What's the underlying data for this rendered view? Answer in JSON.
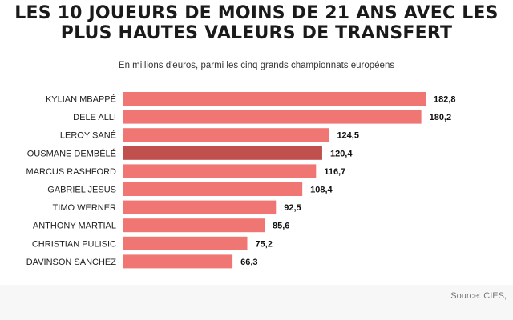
{
  "title": {
    "line1": "LES 10 JOUEURS DE MOINS DE 21 ANS AVEC LES",
    "line2": "PLUS HAUTES VALEURS DE TRANSFERT"
  },
  "subtitle": "En millions d'euros, parmi les cinq grands championnats européens",
  "source": "Source: CIES,",
  "colors": {
    "bar": "#ef7672",
    "highlight": "#c0504d",
    "label": "#222222",
    "value": "#111111"
  },
  "chart_data": {
    "type": "bar",
    "orientation": "horizontal",
    "title": "LES 10 JOUEURS DE MOINS DE 21 ANS AVEC LES PLUS HAUTES VALEURS DE TRANSFERT",
    "subtitle": "En millions d'euros, parmi les cinq grands championnats européens",
    "xlabel": "",
    "ylabel": "",
    "xlim": [
      0,
      182.8
    ],
    "grid": false,
    "highlight_index": 3,
    "categories": [
      "KYLIAN MBAPPÉ",
      "DELE ALLI",
      "LEROY SANÉ",
      "OUSMANE DEMBÉLÉ",
      "MARCUS RASHFORD",
      "GABRIEL JESUS",
      "TIMO WERNER",
      "ANTHONY MARTIAL",
      "CHRISTIAN PULISIC",
      "DAVINSON SANCHEZ"
    ],
    "values": [
      182.8,
      180.2,
      124.5,
      120.4,
      116.7,
      108.4,
      92.5,
      85.6,
      75.2,
      66.3
    ],
    "value_labels": [
      "182,8",
      "180,2",
      "124,5",
      "120,4",
      "116,7",
      "108,4",
      "92,5",
      "85,6",
      "75,2",
      "66,3"
    ]
  }
}
